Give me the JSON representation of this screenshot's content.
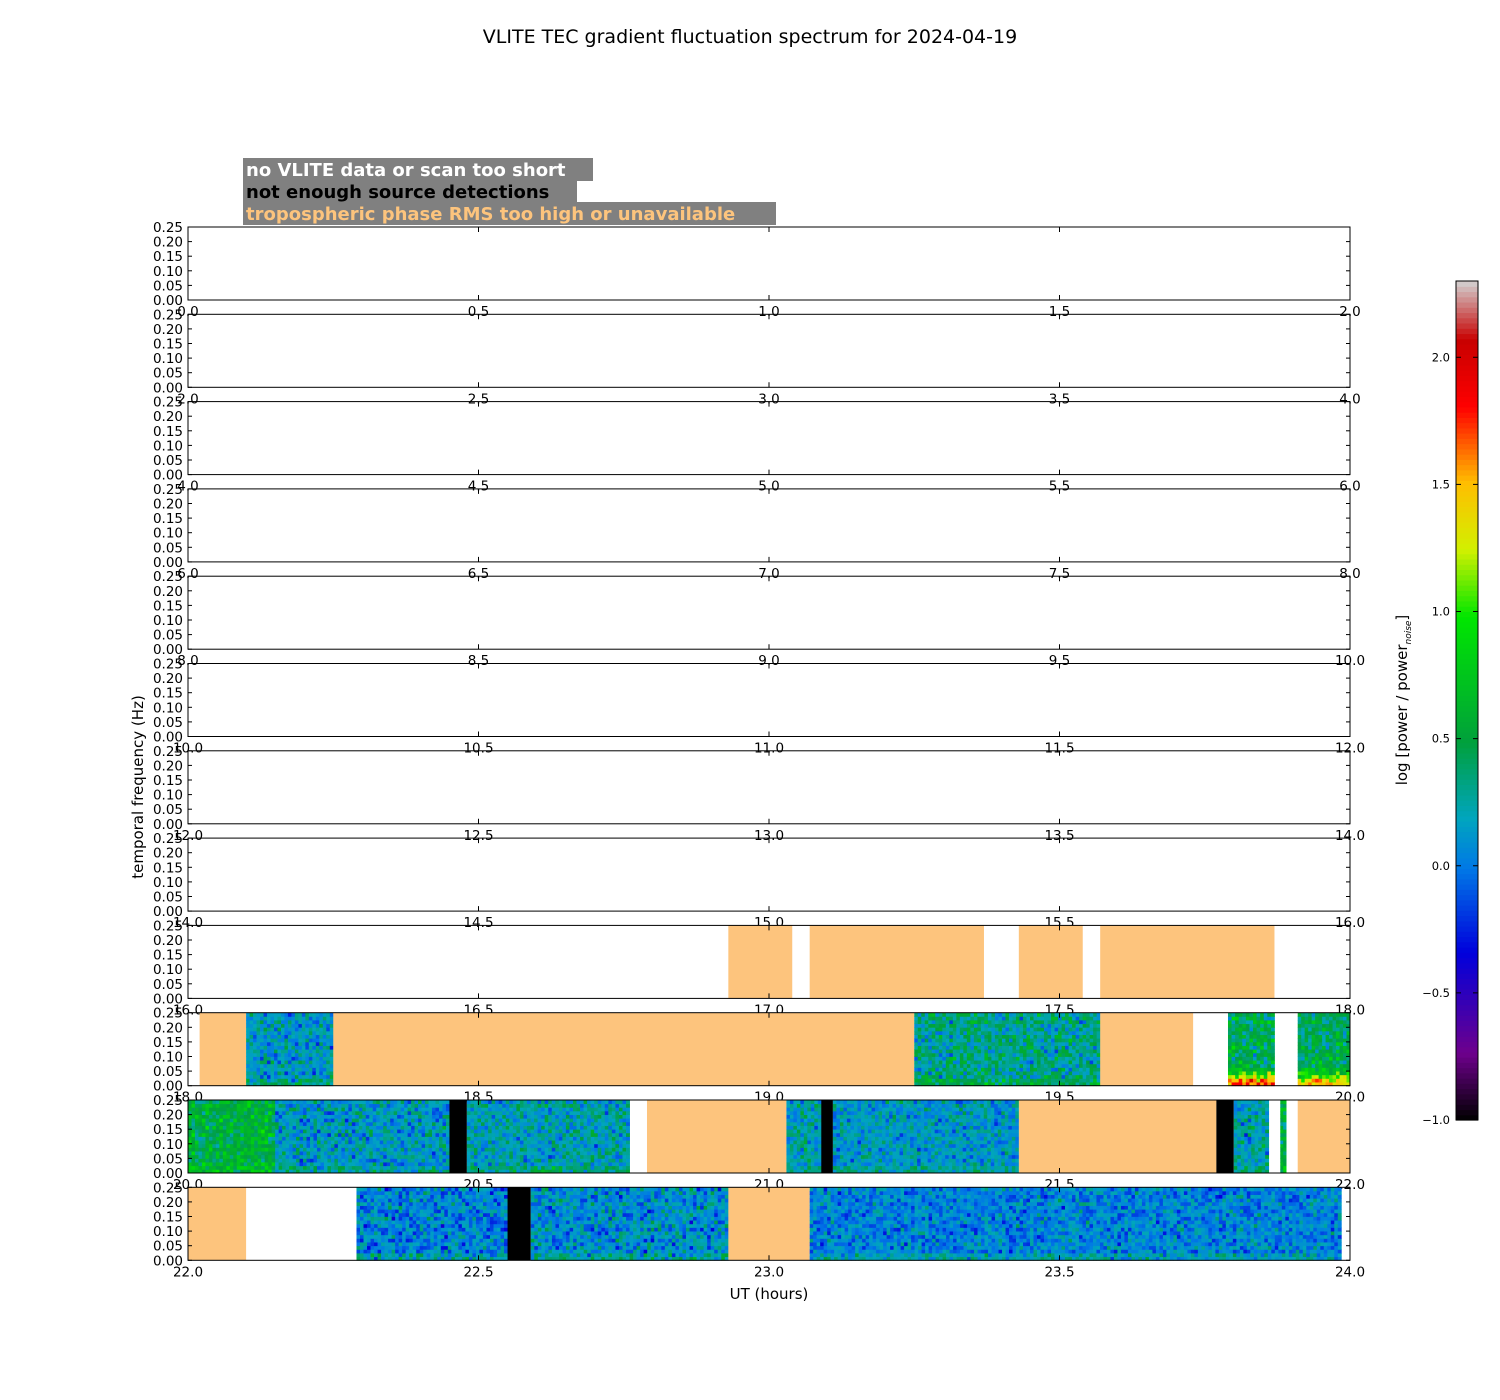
{
  "chart_data": {
    "type": "heatmap",
    "title": "VLITE TEC gradient fluctuation spectrum for 2024-04-19",
    "xlabel": "UT (hours)",
    "ylabel": "temporal frequency (Hz)",
    "ytick_labels": [
      "0.00",
      "0.05",
      "0.10",
      "0.15",
      "0.20",
      "0.25"
    ],
    "ylim": [
      0,
      0.25
    ],
    "legend": {
      "placement": "top-left",
      "entries": [
        {
          "label": "no VLITE data or scan too short",
          "text_color": "#ffffff",
          "box_color": "#808080"
        },
        {
          "label": "not enough source detections",
          "text_color": "#000000",
          "box_color": "#808080"
        },
        {
          "label": "tropospheric phase RMS too high or unavailable",
          "text_color": "#fdc47d",
          "box_color": "#808080"
        }
      ]
    },
    "colorbar": {
      "label_main": "log [power / power",
      "label_sub": "noise",
      "label_end": "]",
      "range": [
        -1.0,
        2.3
      ],
      "tick_values": [
        -1.0,
        -0.5,
        0.0,
        0.5,
        1.0,
        1.5,
        2.0
      ],
      "tick_labels": [
        "−1.0",
        "−0.5",
        "0.0",
        "0.5",
        "1.0",
        "1.5",
        "2.0"
      ]
    },
    "colors": {
      "tropo_flag": "#fdc47d",
      "detection_flag": "#000000",
      "no_data": "#ffffff"
    },
    "panels": [
      {
        "xlim": [
          0,
          2
        ],
        "xtick_labels": [
          "0.0",
          "0.5",
          "1.0",
          "1.5",
          "2.0"
        ],
        "segments": []
      },
      {
        "xlim": [
          2,
          4
        ],
        "xtick_labels": [
          "2.0",
          "2.5",
          "3.0",
          "3.5",
          "4.0"
        ],
        "segments": []
      },
      {
        "xlim": [
          4,
          6
        ],
        "xtick_labels": [
          "4.0",
          "4.5",
          "5.0",
          "5.5",
          "6.0"
        ],
        "segments": []
      },
      {
        "xlim": [
          6,
          8
        ],
        "xtick_labels": [
          "6.0",
          "6.5",
          "7.0",
          "7.5",
          "8.0"
        ],
        "segments": []
      },
      {
        "xlim": [
          8,
          10
        ],
        "xtick_labels": [
          "8.0",
          "8.5",
          "9.0",
          "9.5",
          "10.0"
        ],
        "segments": []
      },
      {
        "xlim": [
          10,
          12
        ],
        "xtick_labels": [
          "10.0",
          "10.5",
          "11.0",
          "11.5",
          "12.0"
        ],
        "segments": []
      },
      {
        "xlim": [
          12,
          14
        ],
        "xtick_labels": [
          "12.0",
          "12.5",
          "13.0",
          "13.5",
          "14.0"
        ],
        "segments": []
      },
      {
        "xlim": [
          14,
          16
        ],
        "xtick_labels": [
          "14.0",
          "14.5",
          "15.0",
          "15.5",
          "16.0"
        ],
        "segments": []
      },
      {
        "xlim": [
          16,
          18
        ],
        "xtick_labels": [
          "16.0",
          "16.5",
          "17.0",
          "17.5",
          "18.0"
        ],
        "segments": [
          {
            "start": 16.93,
            "end": 17.04,
            "kind": "tropo"
          },
          {
            "start": 17.07,
            "end": 17.37,
            "kind": "tropo"
          },
          {
            "start": 17.43,
            "end": 17.54,
            "kind": "tropo"
          },
          {
            "start": 17.57,
            "end": 17.87,
            "kind": "tropo"
          }
        ]
      },
      {
        "xlim": [
          18,
          20
        ],
        "xtick_labels": [
          "18.0",
          "18.5",
          "19.0",
          "19.5",
          "20.0"
        ],
        "segments": [
          {
            "start": 18.02,
            "end": 18.1,
            "kind": "tropo"
          },
          {
            "start": 18.1,
            "end": 18.25,
            "kind": "spectrum",
            "mean": 0.15,
            "spread": 0.28
          },
          {
            "start": 18.25,
            "end": 19.25,
            "kind": "tropo"
          },
          {
            "start": 19.25,
            "end": 19.57,
            "kind": "spectrum",
            "mean": 0.3,
            "spread": 0.32
          },
          {
            "start": 19.57,
            "end": 19.73,
            "kind": "tropo"
          },
          {
            "start": 19.79,
            "end": 19.87,
            "kind": "spectrum",
            "mean": 0.45,
            "spread": 0.35,
            "boost": 1.2
          },
          {
            "start": 19.91,
            "end": 20.0,
            "kind": "spectrum",
            "mean": 0.45,
            "spread": 0.3,
            "boost": 0.9
          }
        ]
      },
      {
        "xlim": [
          20,
          22
        ],
        "xtick_labels": [
          "20.0",
          "20.5",
          "21.0",
          "21.5",
          "22.0"
        ],
        "segments": [
          {
            "start": 20.0,
            "end": 20.15,
            "kind": "spectrum",
            "mean": 0.55,
            "spread": 0.3
          },
          {
            "start": 20.15,
            "end": 20.45,
            "kind": "spectrum",
            "mean": 0.15,
            "spread": 0.3
          },
          {
            "start": 20.45,
            "end": 20.48,
            "kind": "detect"
          },
          {
            "start": 20.48,
            "end": 20.76,
            "kind": "spectrum",
            "mean": 0.2,
            "spread": 0.28
          },
          {
            "start": 20.79,
            "end": 21.03,
            "kind": "tropo"
          },
          {
            "start": 21.03,
            "end": 21.09,
            "kind": "spectrum",
            "mean": 0.2,
            "spread": 0.28
          },
          {
            "start": 21.09,
            "end": 21.11,
            "kind": "detect"
          },
          {
            "start": 21.11,
            "end": 21.43,
            "kind": "spectrum",
            "mean": 0.15,
            "spread": 0.25
          },
          {
            "start": 21.43,
            "end": 21.77,
            "kind": "tropo"
          },
          {
            "start": 21.77,
            "end": 21.8,
            "kind": "detect"
          },
          {
            "start": 21.8,
            "end": 21.86,
            "kind": "spectrum",
            "mean": 0.2,
            "spread": 0.3
          },
          {
            "start": 21.88,
            "end": 21.89,
            "kind": "spectrum",
            "mean": 0.5,
            "spread": 0.3
          },
          {
            "start": 21.91,
            "end": 22.0,
            "kind": "tropo"
          }
        ]
      },
      {
        "xlim": [
          22,
          24
        ],
        "xtick_labels": [
          "22.0",
          "22.5",
          "23.0",
          "23.5",
          "24.0"
        ],
        "segments": [
          {
            "start": 22.0,
            "end": 22.1,
            "kind": "tropo"
          },
          {
            "start": 22.29,
            "end": 22.55,
            "kind": "spectrum",
            "mean": 0.05,
            "spread": 0.3
          },
          {
            "start": 22.55,
            "end": 22.59,
            "kind": "detect"
          },
          {
            "start": 22.59,
            "end": 22.93,
            "kind": "spectrum",
            "mean": 0.1,
            "spread": 0.3
          },
          {
            "start": 22.93,
            "end": 23.07,
            "kind": "tropo"
          },
          {
            "start": 23.07,
            "end": 23.985,
            "kind": "spectrum",
            "mean": 0.05,
            "spread": 0.25
          }
        ]
      }
    ]
  }
}
